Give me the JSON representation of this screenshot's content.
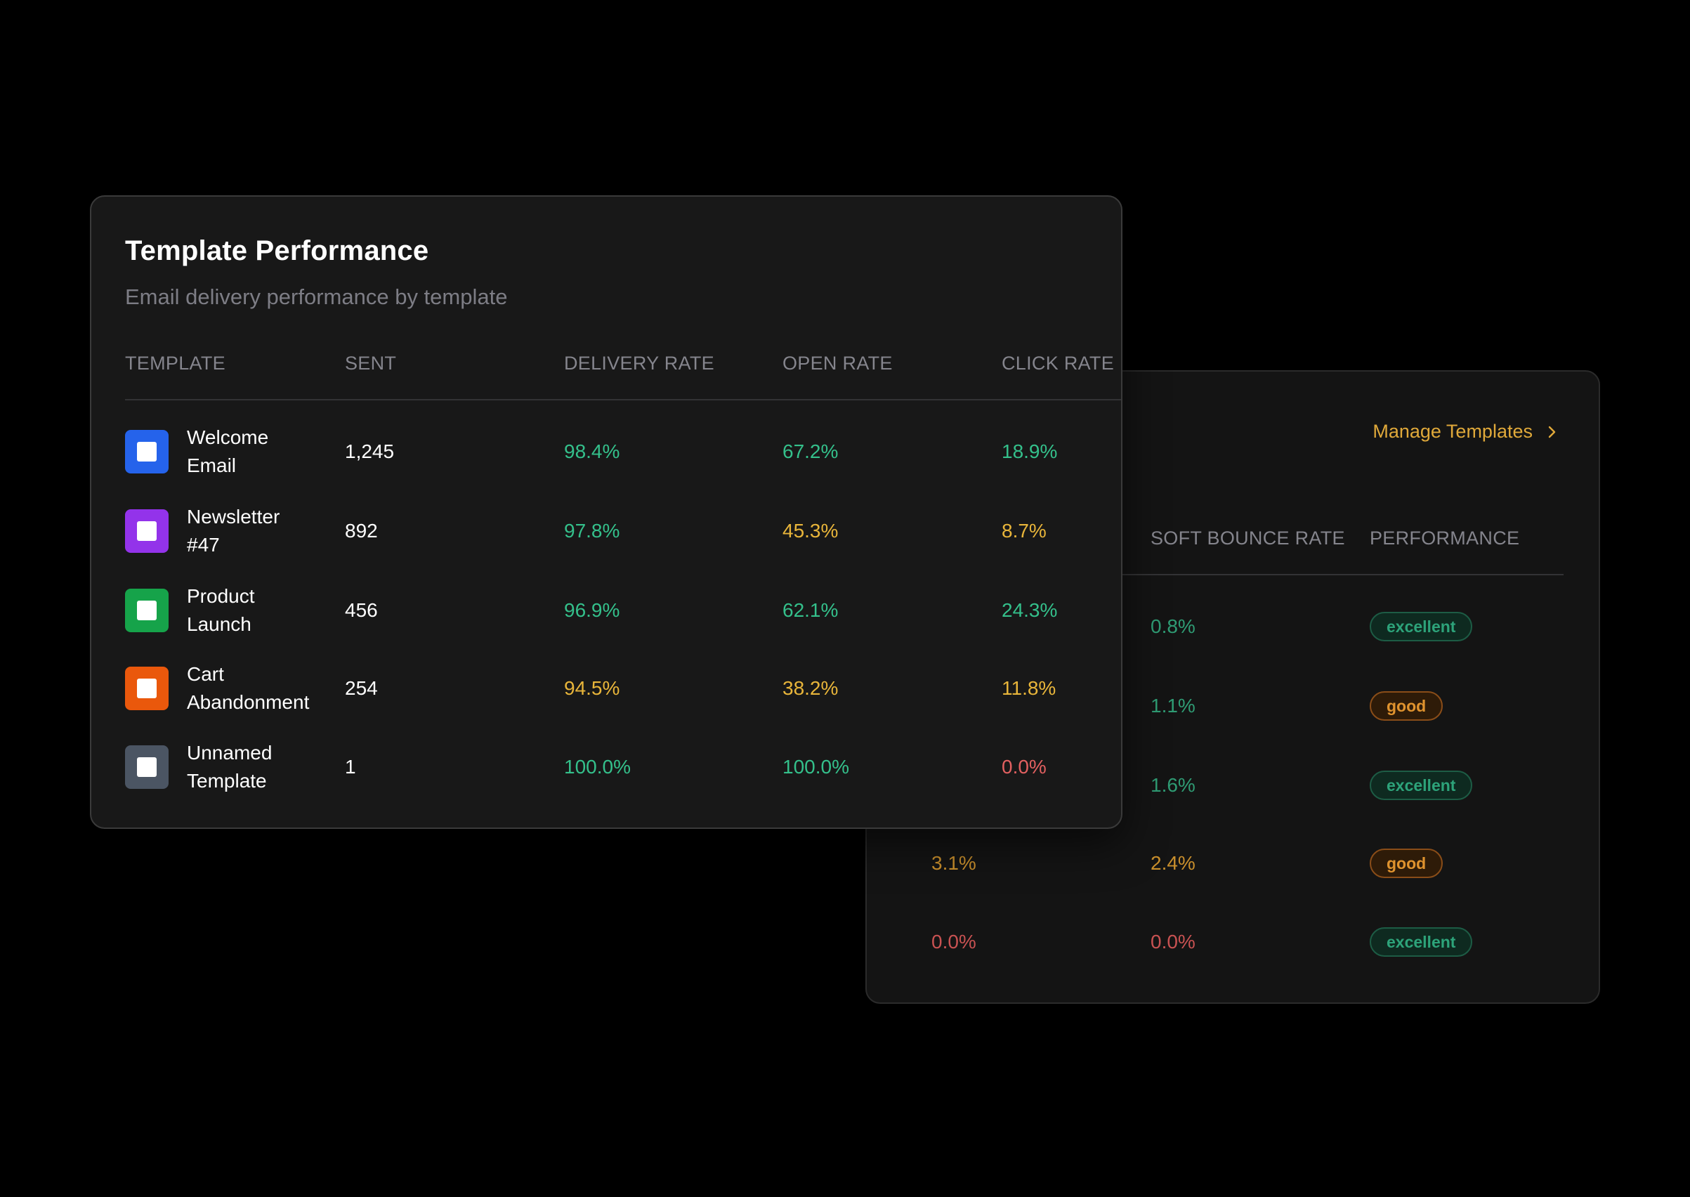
{
  "back_panel": {
    "manage_label": "Manage Templates",
    "columns": [
      "SOFT BOUNCE RATE",
      "PERFORMANCE"
    ],
    "rows": [
      {
        "hard_bounce": "",
        "soft_bounce": "0.8%",
        "performance": "excellent"
      },
      {
        "hard_bounce": "",
        "soft_bounce": "1.1%",
        "performance": "good"
      },
      {
        "hard_bounce": "",
        "soft_bounce": "1.6%",
        "performance": "excellent"
      },
      {
        "hard_bounce": "3.1%",
        "soft_bounce": "2.4%",
        "performance": "good"
      },
      {
        "hard_bounce": "0.0%",
        "soft_bounce": "0.0%",
        "performance": "excellent"
      }
    ]
  },
  "front_panel": {
    "title": "Template Performance",
    "subtitle": "Email delivery performance by template",
    "columns": [
      "TEMPLATE",
      "SENT",
      "DELIVERY RATE",
      "OPEN RATE",
      "CLICK RATE"
    ],
    "rows": [
      {
        "name_line1": "Welcome",
        "name_line2": "Email",
        "color": "#2563eb",
        "sent": "1,245",
        "delivery": "98.4%",
        "open": "67.2%",
        "click": "18.9%"
      },
      {
        "name_line1": "Newsletter",
        "name_line2": "#47",
        "color": "#9333ea",
        "sent": "892",
        "delivery": "97.8%",
        "open": "45.3%",
        "click": "8.7%"
      },
      {
        "name_line1": "Product",
        "name_line2": "Launch",
        "color": "#16a34a",
        "sent": "456",
        "delivery": "96.9%",
        "open": "62.1%",
        "click": "24.3%"
      },
      {
        "name_line1": "Cart",
        "name_line2": "Abandonment",
        "color": "#ea580c",
        "sent": "254",
        "delivery": "94.5%",
        "open": "38.2%",
        "click": "11.8%"
      },
      {
        "name_line1": "Unnamed",
        "name_line2": "Template",
        "color": "#4b5563",
        "sent": "1",
        "delivery": "100.0%",
        "open": "100.0%",
        "click": "0.0%"
      }
    ]
  },
  "colors": {
    "good": "#34c08b",
    "warning": "#e8b53a",
    "bad": "#e26060",
    "accent": "#e0a93a"
  },
  "icons": {
    "manage_chevron": "chevron-right-icon",
    "template_tile": "template-square-icon"
  }
}
